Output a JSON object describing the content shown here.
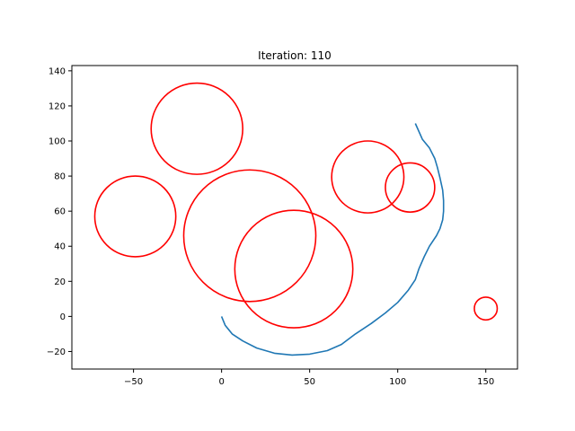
{
  "chart_data": {
    "type": "line",
    "title": "Iteration: 110",
    "xlabel": "",
    "ylabel": "",
    "xlim": [
      -85,
      168
    ],
    "ylim": [
      -30,
      143
    ],
    "x_ticks": [
      -50,
      0,
      50,
      100,
      150
    ],
    "y_ticks": [
      -20,
      0,
      20,
      40,
      60,
      80,
      100,
      120,
      140
    ],
    "grid": false,
    "colors": {
      "path": "#1f77b4",
      "obstacle": "#ff0000"
    },
    "series": [
      {
        "style": "line",
        "points": [
          [
            0,
            0
          ],
          [
            2,
            -5
          ],
          [
            6,
            -10
          ],
          [
            12,
            -14
          ],
          [
            20,
            -18
          ],
          [
            30,
            -21
          ],
          [
            40,
            -22
          ],
          [
            50,
            -21.5
          ],
          [
            60,
            -19.5
          ],
          [
            68,
            -16
          ],
          [
            76,
            -10
          ],
          [
            85,
            -4
          ],
          [
            93,
            2
          ],
          [
            100,
            8
          ],
          [
            106,
            15
          ],
          [
            110,
            21
          ],
          [
            112,
            27
          ],
          [
            115,
            34
          ],
          [
            118,
            40
          ],
          [
            122,
            46
          ],
          [
            124,
            50
          ],
          [
            125.5,
            55
          ],
          [
            126,
            60
          ],
          [
            126,
            66
          ],
          [
            125.5,
            72
          ],
          [
            124,
            79
          ],
          [
            122.5,
            85
          ],
          [
            121,
            90
          ],
          [
            118,
            96
          ],
          [
            114,
            101
          ],
          [
            110,
            110
          ]
        ]
      },
      {
        "style": "circles",
        "items": [
          {
            "cx": -14,
            "cy": 107,
            "r": 26
          },
          {
            "cx": -49,
            "cy": 57,
            "r": 23
          },
          {
            "cx": 16,
            "cy": 46,
            "r": 37.5
          },
          {
            "cx": 41,
            "cy": 27,
            "r": 33.5
          },
          {
            "cx": 83,
            "cy": 79.5,
            "r": 20.5
          },
          {
            "cx": 107,
            "cy": 73.5,
            "r": 14
          },
          {
            "cx": 150,
            "cy": 4.5,
            "r": 6.5
          }
        ]
      }
    ]
  }
}
